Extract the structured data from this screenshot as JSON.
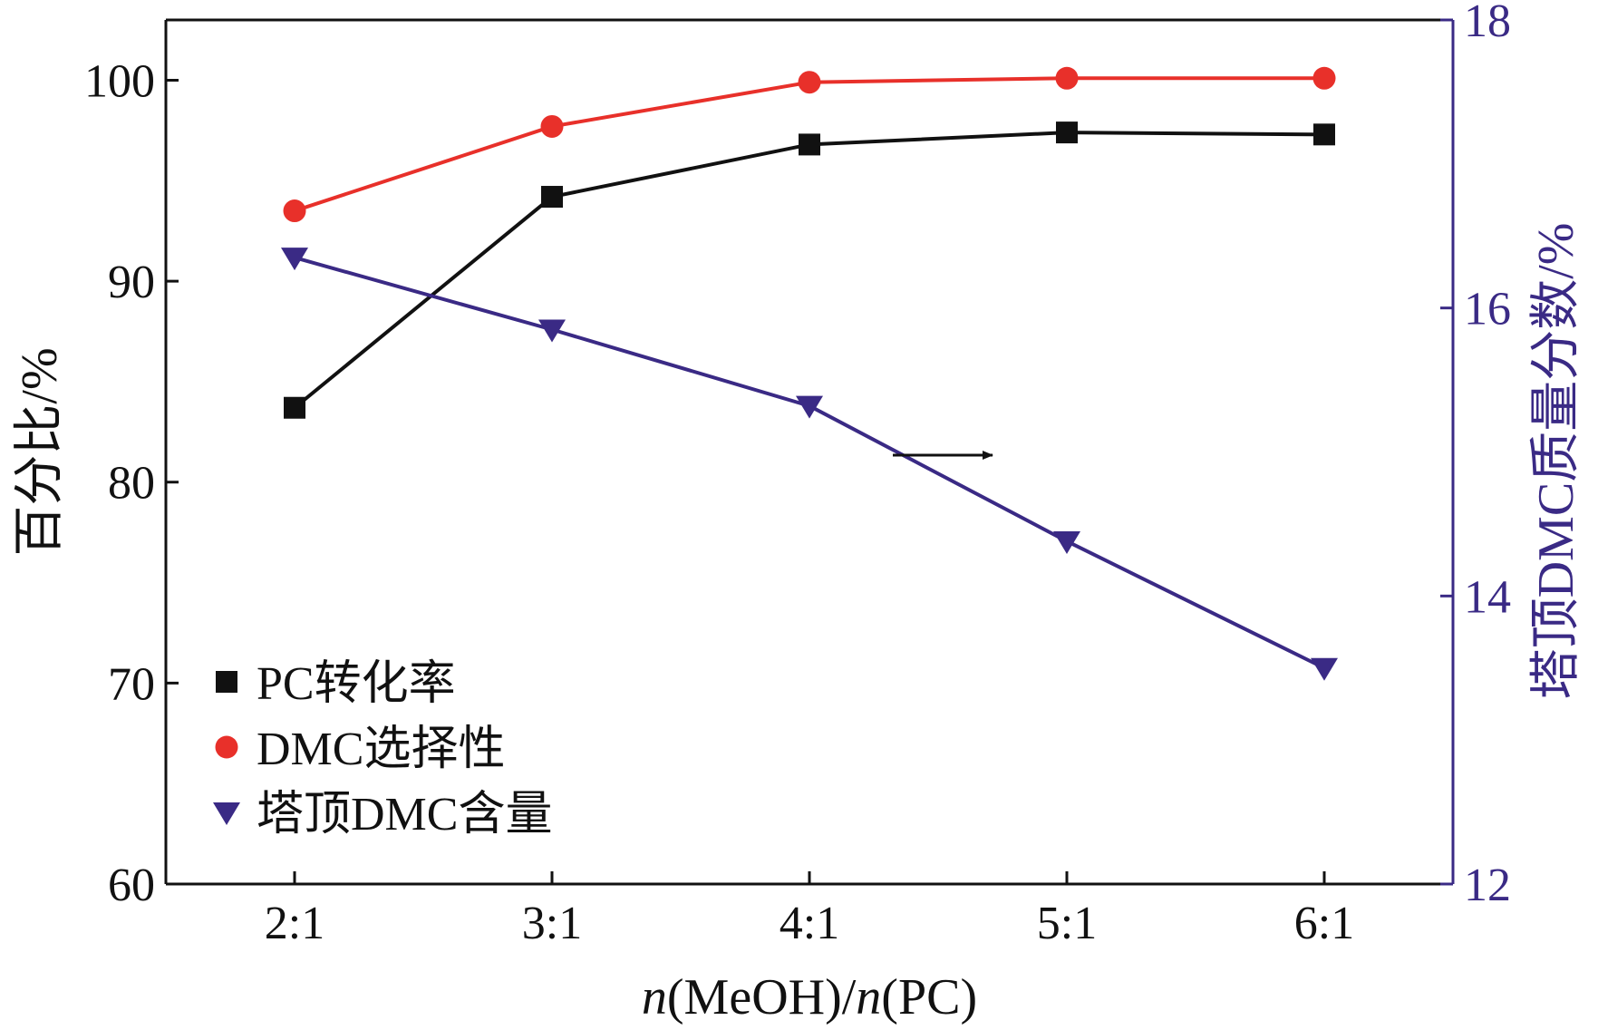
{
  "chart_data": {
    "type": "line",
    "categories": [
      "2:1",
      "3:1",
      "4:1",
      "5:1",
      "6:1"
    ],
    "xlabel": {
      "italic": "n",
      "text1": "(MeOH)/",
      "italic2": "n",
      "text2": "(PC)"
    },
    "ylabel_left": "百分比/%",
    "ylabel_right": "塔顶DMC质量分数/%",
    "ylim_left": [
      60,
      103
    ],
    "yticks_left": [
      60,
      70,
      80,
      90,
      100
    ],
    "ylim_right": [
      12,
      18
    ],
    "yticks_right": [
      12,
      14,
      16,
      18
    ],
    "series": [
      {
        "name": "PC转化率",
        "axis": "left",
        "marker": "square",
        "color": "#111111",
        "values": [
          83.7,
          94.2,
          96.8,
          97.4,
          97.3
        ]
      },
      {
        "name": "DMC选择性",
        "axis": "left",
        "marker": "circle",
        "color": "#e8302a",
        "values": [
          93.5,
          97.7,
          99.9,
          100.1,
          100.1
        ]
      },
      {
        "name": "塔顶DMC含量",
        "axis": "right",
        "marker": "triangle-down",
        "color": "#3a2a85",
        "values": [
          16.35,
          15.85,
          15.32,
          14.38,
          13.5
        ]
      }
    ],
    "legend_position": "bottom-left",
    "annotation": "arrow pointing right (series plotted on right axis)",
    "colors": {
      "axis": "#111111",
      "right_axis": "#3a2a85"
    }
  }
}
